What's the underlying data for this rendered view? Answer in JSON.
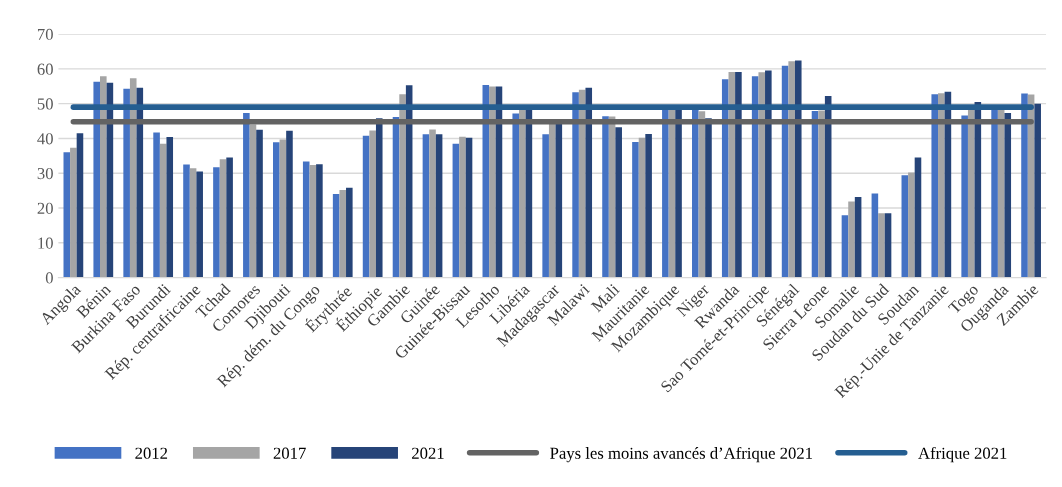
{
  "chart_data": {
    "type": "bar",
    "categories": [
      "Angola",
      "Bénin",
      "Burkina Faso",
      "Burundi",
      "Rép. centrafricaine",
      "Tchad",
      "Comores",
      "Djibouti",
      "Rép. dém. du Congo",
      "Érythrée",
      "Éthiopie",
      "Gambie",
      "Guinée",
      "Guinée-Bissau",
      "Lesotho",
      "Libéria",
      "Madagascar",
      "Malawi",
      "Mali",
      "Mauritanie",
      "Mozambique",
      "Niger",
      "Rwanda",
      "Sao Tomé-et-Principe",
      "Sénégal",
      "Sierra Leone",
      "Somalie",
      "Soudan du Sud",
      "Soudan",
      "Rép.-Unie de Tanzanie",
      "Togo",
      "Ouganda",
      "Zambie"
    ],
    "series": [
      {
        "name": "2012",
        "color": "#4472c4",
        "values": [
          36,
          56.3,
          54.3,
          41.7,
          32.5,
          31.7,
          47.3,
          38.9,
          33.4,
          24,
          40.8,
          46.2,
          41.2,
          38.5,
          55.4,
          47.2,
          41.2,
          53.3,
          46.4,
          39,
          49,
          48.8,
          57,
          57.9,
          60.9,
          47.9,
          17.9,
          24.2,
          29.4,
          52.7,
          46.6,
          49,
          52.9
        ]
      },
      {
        "name": "2017",
        "color": "#a5a5a5",
        "values": [
          37.3,
          57.9,
          57.3,
          38.5,
          31.4,
          34,
          44,
          39.7,
          32.4,
          25.2,
          42.3,
          52.7,
          42.6,
          40.5,
          54.9,
          48.2,
          44.5,
          54,
          46.3,
          40.2,
          49,
          47.8,
          59.1,
          59,
          62.2,
          48,
          21.9,
          18.5,
          30.2,
          53,
          48.5,
          48.5,
          52.6
        ]
      },
      {
        "name": "2021",
        "color": "#264478",
        "values": [
          41.5,
          56,
          54.6,
          40.4,
          30.5,
          34.5,
          42.5,
          42.2,
          32.6,
          25.8,
          45.8,
          55.3,
          41.2,
          40.2,
          54.9,
          49,
          44.5,
          54.6,
          43.2,
          41.3,
          49,
          45.8,
          59.1,
          59.5,
          62.4,
          52.2,
          23.2,
          18.5,
          34.5,
          53.4,
          50.5,
          47.3,
          50
        ]
      },
      {
        "name": "Pays les moins avancés d’Afrique 2021",
        "type": "line",
        "color": "#636363",
        "values": [
          44.8,
          44.8,
          44.8,
          44.8,
          44.8,
          44.8,
          44.8,
          44.8,
          44.8,
          44.8,
          44.8,
          44.8,
          44.8,
          44.8,
          44.8,
          44.8,
          44.8,
          44.8,
          44.8,
          44.8,
          44.8,
          44.8,
          44.8,
          44.8,
          44.8,
          44.8,
          44.8,
          44.8,
          44.8,
          44.8,
          44.8,
          44.8,
          44.8
        ]
      },
      {
        "name": "Afrique 2021",
        "type": "line",
        "color": "#255e91",
        "values": [
          49,
          49,
          49,
          49,
          49,
          49,
          49,
          49,
          49,
          49,
          49,
          49,
          49,
          49,
          49,
          49,
          49,
          49,
          49,
          49,
          49,
          49,
          49,
          49,
          49,
          49,
          49,
          49,
          49,
          49,
          49,
          49,
          49
        ]
      }
    ],
    "ylim": [
      0,
      70
    ],
    "yticks": [
      0,
      10,
      20,
      30,
      40,
      50,
      60,
      70
    ],
    "grid": "y",
    "legend": "bottom"
  }
}
